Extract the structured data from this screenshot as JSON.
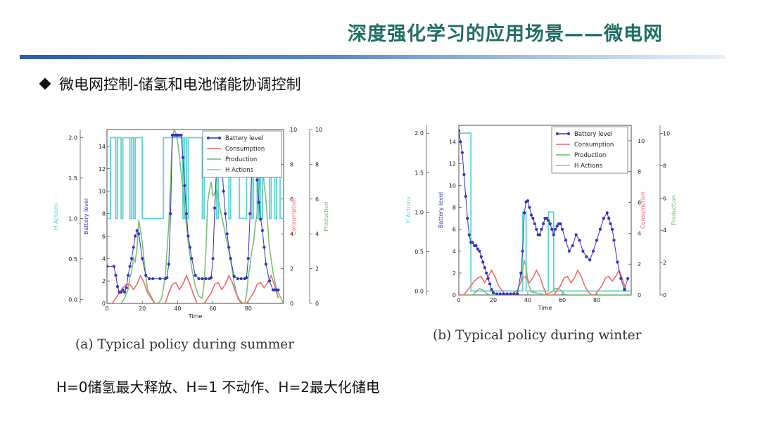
{
  "header": {
    "title": "深度强化学习的应用场景——微电网"
  },
  "bullet": {
    "text": "微电网控制-储氢和电池储能协调控制"
  },
  "note": {
    "text": "H=0储氢最大释放、H=1 不动作、H=2最大化储电"
  },
  "colors": {
    "battery": "#3333bb",
    "consumption": "#ee6a6a",
    "production": "#6cb96c",
    "h_actions": "#5fd2d2"
  },
  "chart_data": [
    {
      "type": "line",
      "caption": "(a) Typical policy during summer",
      "xlabel": "Time",
      "xlim": [
        0,
        100
      ],
      "xticks": [
        0,
        20,
        40,
        60,
        80
      ],
      "legend_position": "top-right",
      "axes": {
        "h_actions": {
          "label": "H Actions",
          "ylim": [
            -0.05,
            2.1
          ],
          "ticks": [
            "0.0",
            "0.5",
            "1.0",
            "1.5",
            "2.0"
          ],
          "tick_values": [
            0,
            0.5,
            1,
            1.5,
            2
          ]
        },
        "battery": {
          "label": "Battery level",
          "ylim": [
            0,
            15.5
          ],
          "ticks": [
            "0",
            "2",
            "4",
            "6",
            "8",
            "10",
            "12",
            "14"
          ],
          "tick_values": [
            0,
            2,
            4,
            6,
            8,
            10,
            12,
            14
          ]
        },
        "consumption": {
          "label": "Consumption",
          "ylim": [
            0,
            10
          ],
          "ticks": [
            "0",
            "2",
            "4",
            "6",
            "8",
            "10"
          ],
          "tick_values": [
            0,
            2,
            4,
            6,
            8,
            10
          ]
        },
        "production": {
          "label": "Production",
          "ylim": [
            0,
            10
          ],
          "ticks": [
            "0",
            "2",
            "4",
            "6",
            "8",
            "10"
          ],
          "tick_values": [
            0,
            2,
            4,
            6,
            8,
            10
          ]
        }
      },
      "series": [
        {
          "name": "Battery level",
          "axis": "battery",
          "marker": "dot",
          "x": [
            0,
            4,
            5,
            6,
            7,
            8,
            9,
            10,
            11,
            12,
            13,
            14,
            15,
            16,
            17,
            18,
            20,
            22,
            24,
            26,
            30,
            33,
            34,
            35,
            36,
            37,
            38,
            39,
            40,
            41,
            42,
            43,
            44,
            45,
            46,
            47,
            48,
            50,
            52,
            54,
            56,
            58,
            59,
            60,
            61,
            62,
            63,
            64,
            65,
            66,
            67,
            68,
            69,
            70,
            72,
            74,
            76,
            78,
            79,
            80,
            81,
            82,
            83,
            84,
            85,
            86,
            87,
            88,
            89,
            90,
            92,
            94,
            95,
            96,
            97
          ],
          "y": [
            3.3,
            3.3,
            2.5,
            1.5,
            1.0,
            1.0,
            1.2,
            1.0,
            1.4,
            2.5,
            3.3,
            4.0,
            5.0,
            6.0,
            6.5,
            6.2,
            4.0,
            2.5,
            2.2,
            2.2,
            2.2,
            2.2,
            2.3,
            3.5,
            8.0,
            15.0,
            15.0,
            15.0,
            15.0,
            15.0,
            15.0,
            13.0,
            10.5,
            8.0,
            6.0,
            5.0,
            4.0,
            2.5,
            2.2,
            2.2,
            2.2,
            2.2,
            2.3,
            4.0,
            8.5,
            12.0,
            13.5,
            13.8,
            12.5,
            10.0,
            8.0,
            6.2,
            5.0,
            4.0,
            2.4,
            2.2,
            2.2,
            2.2,
            2.3,
            4.0,
            8.0,
            12.0,
            13.0,
            12.5,
            11.0,
            9.0,
            7.5,
            6.5,
            5.0,
            3.5,
            2.0,
            1.2,
            1.2,
            1.2,
            1.2
          ]
        },
        {
          "name": "Consumption",
          "axis": "consumption",
          "x": [
            0,
            3,
            5,
            7,
            9,
            11,
            13,
            15,
            17,
            19,
            21,
            23,
            25,
            27,
            29,
            31,
            33,
            35,
            37,
            39,
            41,
            43,
            45,
            47,
            49,
            51,
            53,
            55,
            57,
            59,
            61,
            63,
            65,
            67,
            69,
            71,
            73,
            75,
            77,
            79,
            81,
            83,
            85,
            87,
            89,
            91,
            93,
            95,
            97
          ],
          "y": [
            0,
            0,
            0.3,
            0.6,
            0.9,
            1.1,
            1.1,
            0.8,
            1.1,
            1.6,
            1.2,
            0.6,
            0.3,
            0,
            0,
            0,
            0,
            0.6,
            1.1,
            1.2,
            0.8,
            1.1,
            1.6,
            1.1,
            0.5,
            0,
            0,
            0,
            0.3,
            0.6,
            1.1,
            1.2,
            0.8,
            1.1,
            1.6,
            1.2,
            0.6,
            0.2,
            0,
            0,
            0.3,
            0.6,
            1.1,
            1.2,
            0.9,
            1.2,
            1.6,
            1.0,
            0.3
          ]
        },
        {
          "name": "Production",
          "axis": "production",
          "x": [
            0,
            8,
            10,
            12,
            13,
            14,
            15,
            16,
            17,
            18,
            19,
            20,
            21,
            22,
            23,
            25,
            27,
            29,
            31,
            33,
            35,
            36,
            37,
            38,
            39,
            40,
            41,
            42,
            44,
            46,
            48,
            50,
            52,
            54,
            55,
            56,
            57,
            58,
            59,
            60,
            62,
            64,
            66,
            68,
            70,
            72,
            74,
            76,
            78,
            79,
            80,
            81,
            82,
            83,
            84,
            85,
            86,
            87,
            88,
            89,
            90,
            91,
            92,
            94,
            96,
            100
          ],
          "y": [
            0,
            0,
            0.3,
            0.8,
            1.5,
            1.8,
            2.6,
            2.4,
            3.2,
            4.8,
            4.2,
            3.5,
            2.5,
            1.6,
            0.8,
            0.4,
            0,
            0,
            0.3,
            1.5,
            4.5,
            7.0,
            9.5,
            10.0,
            9.8,
            9.3,
            8.5,
            7.5,
            5.5,
            3.5,
            2.0,
            1.0,
            0.4,
            0.3,
            1.2,
            3.0,
            5.8,
            6.5,
            7.0,
            6.2,
            6.5,
            5.5,
            4.5,
            3.5,
            2.5,
            1.2,
            0.3,
            0,
            0,
            0.5,
            1.5,
            2.2,
            3.0,
            3.5,
            4.5,
            5.2,
            6.5,
            7.8,
            8.2,
            6.8,
            6.0,
            4.5,
            3.2,
            1.8,
            0.8,
            0
          ]
        },
        {
          "name": "H Actions",
          "axis": "h_actions",
          "step": true,
          "x": [
            0,
            1,
            2,
            3,
            4,
            5,
            6,
            7,
            8,
            9,
            10,
            11,
            12,
            13,
            14,
            15,
            16,
            17,
            18,
            19,
            20,
            21,
            22,
            23,
            24,
            25,
            26,
            27,
            28,
            29,
            30,
            31,
            32,
            33,
            34,
            35,
            36,
            37,
            38,
            39,
            40,
            41,
            42,
            43,
            44,
            45,
            46,
            47,
            48,
            49,
            50,
            51,
            52,
            53,
            54,
            55,
            56,
            57,
            58,
            59,
            60,
            61,
            62,
            63,
            64,
            65,
            66,
            67,
            68,
            69,
            70,
            71,
            72,
            73,
            74,
            75,
            76,
            77,
            78,
            79,
            80,
            81,
            82,
            83,
            84,
            85,
            86,
            87,
            88,
            89,
            90,
            91,
            92,
            93,
            94,
            95,
            96,
            97,
            98,
            99
          ],
          "y": [
            1,
            1,
            2,
            2,
            2,
            1,
            2,
            2,
            1,
            2,
            2,
            2,
            2,
            1,
            2,
            1,
            2,
            2,
            2,
            2,
            1,
            1,
            1,
            1,
            1,
            1,
            1,
            1,
            1,
            1,
            1,
            1,
            2,
            2,
            2,
            2,
            2,
            2,
            2,
            2,
            2,
            2,
            2,
            1,
            2,
            1,
            2,
            2,
            2,
            2,
            2,
            2,
            2,
            2,
            1,
            2,
            2,
            2,
            2,
            2,
            2,
            2,
            1,
            2,
            2,
            2,
            2,
            2,
            2,
            1,
            2,
            2,
            2,
            2,
            2,
            1,
            1,
            1,
            1,
            2,
            2,
            2,
            1,
            2,
            2,
            1,
            2,
            1,
            2,
            2,
            2,
            2,
            1,
            2,
            2,
            1,
            2,
            2,
            1,
            1
          ]
        }
      ]
    },
    {
      "type": "line",
      "caption": "(b) Typical policy during winter",
      "xlabel": "Time",
      "xlim": [
        0,
        100
      ],
      "xticks": [
        0,
        20,
        40,
        60,
        80
      ],
      "legend_position": "top-right",
      "axes": {
        "h_actions": {
          "label": "H Actions",
          "ylim": [
            -0.05,
            2.1
          ],
          "ticks": [
            "0.0",
            "0.5",
            "1.0",
            "1.5",
            "2.0"
          ],
          "tick_values": [
            0,
            0.5,
            1,
            1.5,
            2
          ]
        },
        "battery": {
          "label": "Battery level",
          "ylim": [
            0,
            15.5
          ],
          "ticks": [
            "0",
            "2",
            "4",
            "6",
            "8",
            "10",
            "12",
            "14"
          ],
          "tick_values": [
            0,
            2,
            4,
            6,
            8,
            10,
            12,
            14
          ]
        },
        "consumption": {
          "label": "Consumption",
          "ylim": [
            0,
            11
          ],
          "ticks": [
            "0",
            "2",
            "4",
            "6",
            "8",
            "10"
          ],
          "tick_values": [
            0,
            2,
            4,
            6,
            8,
            10
          ]
        },
        "production": {
          "label": "Production",
          "ylim": [
            0,
            10.5
          ],
          "ticks": [
            "0",
            "2",
            "4",
            "6",
            "8",
            "10"
          ],
          "tick_values": [
            0,
            2,
            4,
            6,
            8,
            10
          ]
        }
      },
      "series": [
        {
          "name": "Battery level",
          "axis": "battery",
          "marker": "dot",
          "x": [
            0,
            1,
            2,
            3,
            4,
            5,
            6,
            7,
            8,
            9,
            10,
            11,
            12,
            13,
            14,
            15,
            16,
            17,
            18,
            19,
            20,
            22,
            24,
            26,
            28,
            30,
            32,
            34,
            36,
            37,
            38,
            39,
            40,
            41,
            42,
            43,
            44,
            45,
            46,
            47,
            48,
            49,
            50,
            51,
            52,
            53,
            54,
            55,
            56,
            57,
            58,
            59,
            60,
            62,
            64,
            66,
            68,
            70,
            72,
            74,
            76,
            78,
            80,
            82,
            84,
            86,
            87,
            88,
            89,
            90,
            92,
            94,
            96,
            98
          ],
          "y": [
            15.0,
            14.0,
            13.0,
            11.0,
            9.0,
            7.0,
            5.5,
            4.8,
            4.8,
            4.5,
            4.5,
            4.2,
            4.0,
            3.5,
            3.0,
            2.5,
            2.0,
            1.5,
            1.0,
            0.5,
            0.2,
            0.1,
            0.1,
            0.1,
            0.1,
            0.1,
            0.1,
            0.1,
            2.0,
            4.0,
            7.5,
            8.5,
            8.6,
            8.0,
            7.3,
            7.0,
            6.5,
            6.0,
            5.5,
            5.5,
            6.0,
            6.5,
            7.0,
            7.0,
            6.8,
            6.5,
            6.0,
            5.5,
            6.0,
            6.3,
            6.5,
            6.5,
            6.0,
            5.0,
            4.0,
            4.5,
            5.5,
            5.0,
            4.0,
            3.5,
            3.2,
            4.0,
            5.0,
            6.0,
            7.0,
            7.5,
            7.0,
            6.5,
            6.0,
            5.0,
            3.0,
            1.5,
            0.5,
            1.5
          ]
        },
        {
          "name": "Consumption",
          "axis": "consumption",
          "x": [
            0,
            3,
            5,
            7,
            9,
            11,
            13,
            15,
            17,
            19,
            21,
            23,
            25,
            27,
            29,
            31,
            33,
            35,
            37,
            39,
            41,
            43,
            45,
            47,
            49,
            51,
            53,
            55,
            57,
            59,
            61,
            63,
            65,
            67,
            69,
            71,
            73,
            75,
            77,
            79,
            81,
            83,
            85,
            87,
            89,
            91,
            93,
            95,
            97
          ],
          "y": [
            0,
            0,
            0.3,
            0.6,
            0.9,
            1.1,
            1.2,
            0.8,
            1.2,
            1.6,
            1.2,
            0.6,
            0.3,
            0,
            0,
            0,
            0,
            0.6,
            1.1,
            1.2,
            0.8,
            1.1,
            1.6,
            1.2,
            0.5,
            0,
            0,
            0,
            0.3,
            0.6,
            1.1,
            1.2,
            0.8,
            1.1,
            1.6,
            1.2,
            0.6,
            0.2,
            0,
            0,
            0.3,
            0.6,
            1.1,
            1.2,
            0.9,
            1.2,
            1.6,
            1.0,
            0.3
          ]
        },
        {
          "name": "Production",
          "axis": "production",
          "x": [
            0,
            8,
            10,
            12,
            14,
            16,
            18,
            30,
            34,
            36,
            37,
            38,
            39,
            40,
            42,
            50,
            54,
            56,
            58,
            60,
            62,
            70,
            100
          ],
          "y": [
            0,
            0,
            0.2,
            0.4,
            0.3,
            0.1,
            0,
            0,
            0.3,
            0.8,
            1.6,
            2.1,
            1.8,
            0.8,
            0.2,
            0,
            0.2,
            0.4,
            0.4,
            0.2,
            0,
            0,
            0
          ]
        },
        {
          "name": "H Actions",
          "axis": "h_actions",
          "step": true,
          "x": [
            0,
            6,
            7,
            36,
            37,
            38,
            39,
            51,
            52,
            53,
            54,
            55,
            100
          ],
          "y": [
            2,
            2,
            0,
            0,
            1,
            1,
            0,
            0,
            1,
            1,
            1,
            0,
            0
          ]
        }
      ]
    }
  ]
}
